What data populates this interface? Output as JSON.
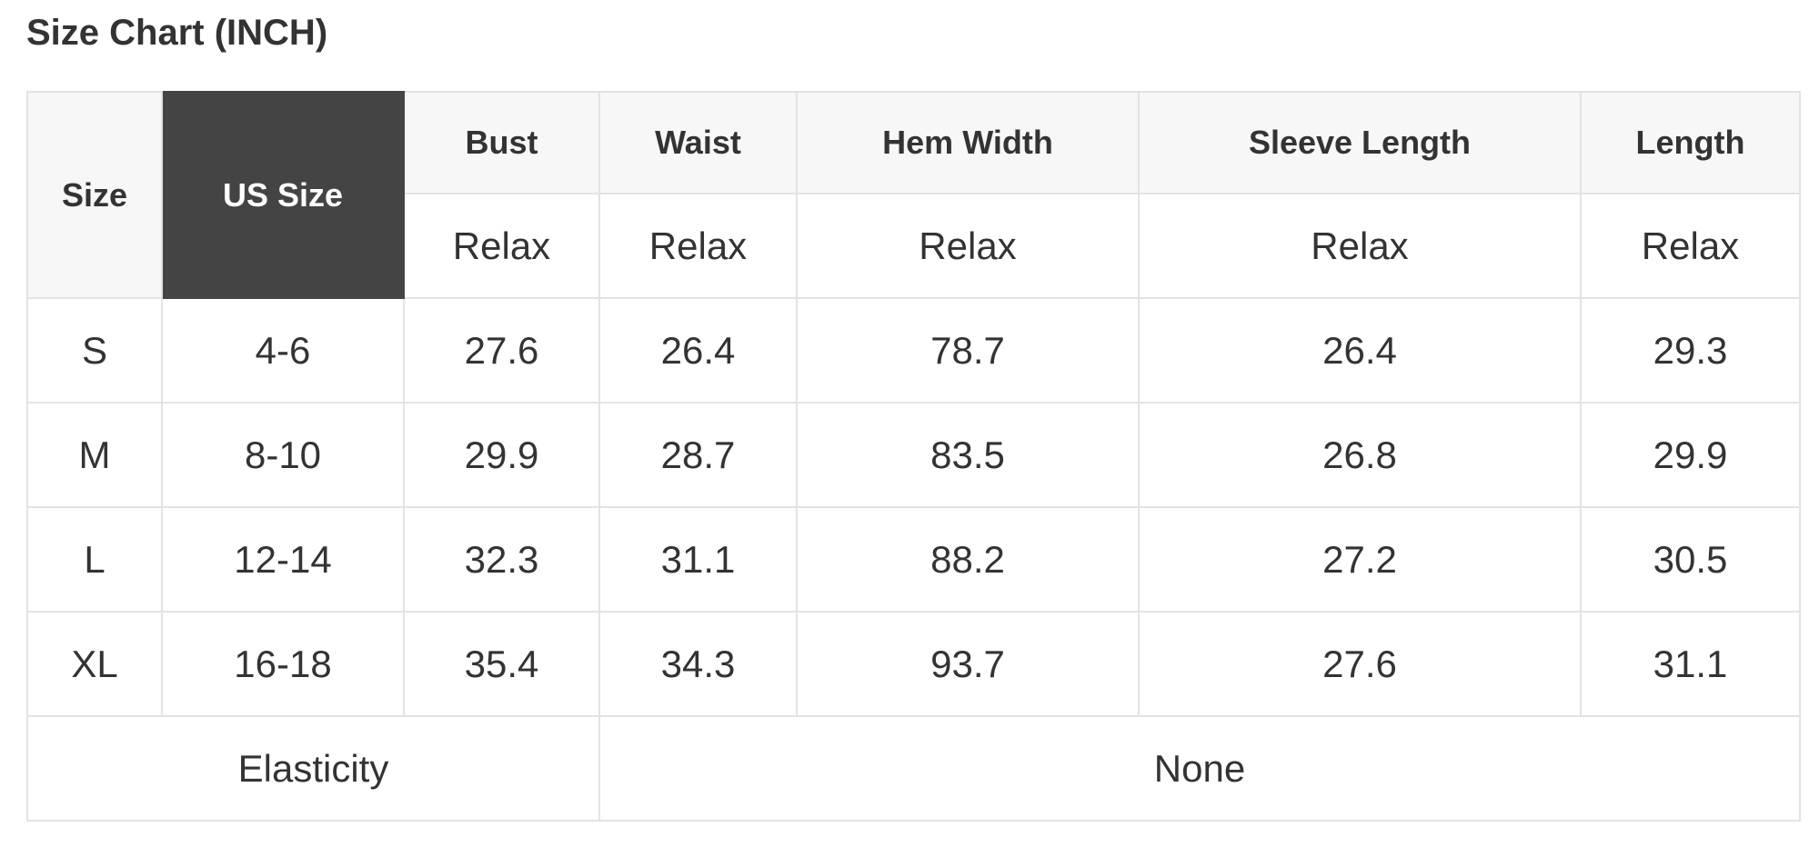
{
  "title": "Size Chart (INCH)",
  "header": {
    "size": "Size",
    "us_size": "US Size",
    "columns": [
      "Bust",
      "Waist",
      "Hem Width",
      "Sleeve Length",
      "Length"
    ],
    "sub": [
      "Relax",
      "Relax",
      "Relax",
      "Relax",
      "Relax"
    ]
  },
  "rows": [
    {
      "size": "S",
      "us": "4-6",
      "values": [
        "27.6",
        "26.4",
        "78.7",
        "26.4",
        "29.3"
      ]
    },
    {
      "size": "M",
      "us": "8-10",
      "values": [
        "29.9",
        "28.7",
        "83.5",
        "26.8",
        "29.9"
      ]
    },
    {
      "size": "L",
      "us": "12-14",
      "values": [
        "32.3",
        "31.1",
        "88.2",
        "27.2",
        "30.5"
      ]
    },
    {
      "size": "XL",
      "us": "16-18",
      "values": [
        "35.4",
        "34.3",
        "93.7",
        "27.6",
        "31.1"
      ]
    }
  ],
  "footer": {
    "label": "Elasticity",
    "value": "None"
  },
  "colors": {
    "header_bg": "#f7f7f7",
    "us_size_bg": "#444444",
    "border": "#e3e3e3",
    "text": "#333333"
  }
}
